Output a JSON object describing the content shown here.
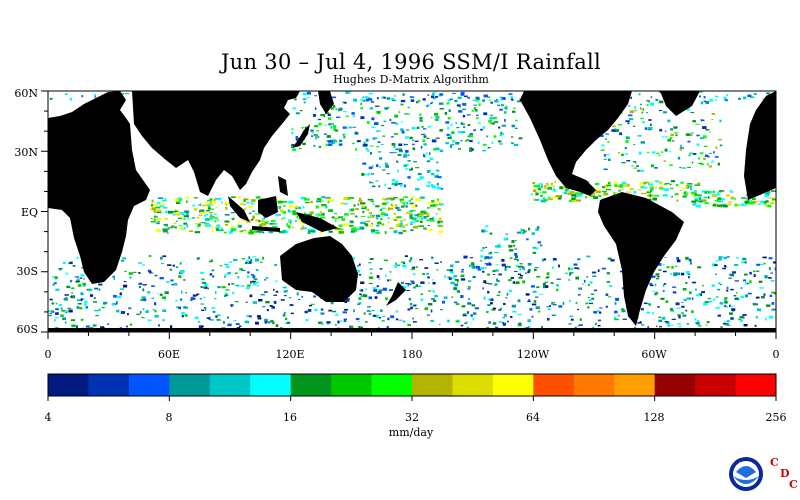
{
  "title": "Jun 30 – Jul 4, 1996 SSM/I Rainfall",
  "subtitle": "Hughes D-Matrix Algorithm",
  "lat_labels": [
    "60N",
    "30N",
    "EQ",
    "30S",
    "60S"
  ],
  "lon_labels": [
    "0",
    "60E",
    "120E",
    "180",
    "120W",
    "60W",
    "0"
  ],
  "colorbar": {
    "colors": [
      "#001a80",
      "#0033b3",
      "#0055ff",
      "#009999",
      "#00c8c8",
      "#00ffff",
      "#00961e",
      "#00c800",
      "#00ff00",
      "#b4b400",
      "#dcdc00",
      "#ffff00",
      "#ff5000",
      "#ff7800",
      "#ffa000",
      "#960000",
      "#c80000",
      "#ff0000"
    ],
    "tick_labels": [
      "4",
      "8",
      "16",
      "32",
      "64",
      "128",
      "256"
    ],
    "units": "mm/day"
  },
  "logo": {
    "text": "NOAA",
    "letters": [
      "C",
      "D",
      "C"
    ]
  }
}
